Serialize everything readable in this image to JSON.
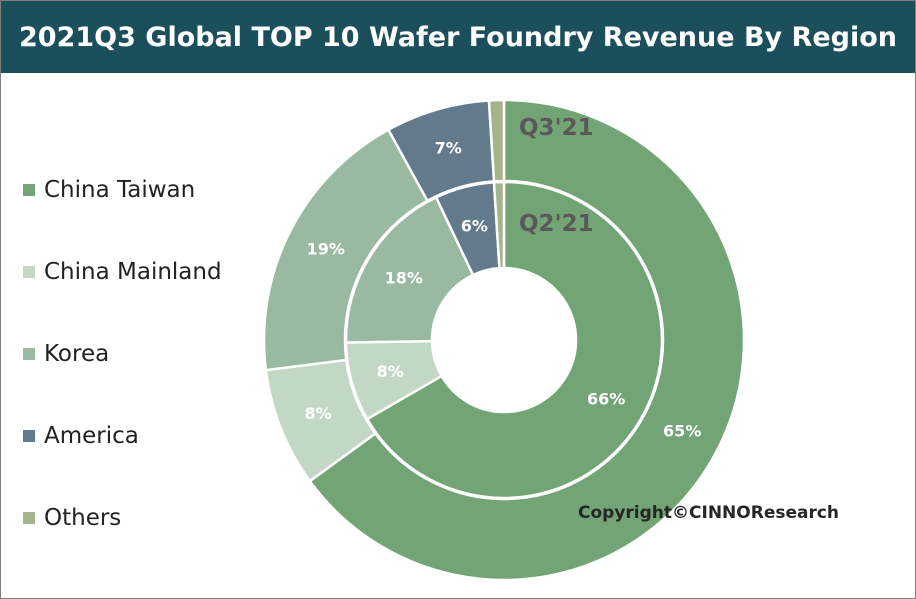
{
  "chart_data": {
    "type": "pie",
    "subtype": "nested-donut",
    "title": "2021Q3 Global TOP 10 Wafer Foundry Revenue By Region",
    "categories": [
      "China Taiwan",
      "China Mainland",
      "Korea",
      "America",
      "Others"
    ],
    "colors": [
      "#72a476",
      "#c2d8c4",
      "#99b9a0",
      "#627a8c",
      "#a5b48a"
    ],
    "series": [
      {
        "name": "Q3'21",
        "values": [
          65,
          8,
          19,
          7,
          1
        ],
        "labels": [
          "65%",
          "8%",
          "19%",
          "7%",
          ""
        ]
      },
      {
        "name": "Q2'21",
        "values": [
          66,
          8,
          18,
          6,
          1
        ],
        "labels": [
          "66%",
          "8%",
          "18%",
          "6%",
          ""
        ]
      }
    ],
    "legend_position": "left",
    "copyright": "Copyright©CINNOResearch"
  }
}
